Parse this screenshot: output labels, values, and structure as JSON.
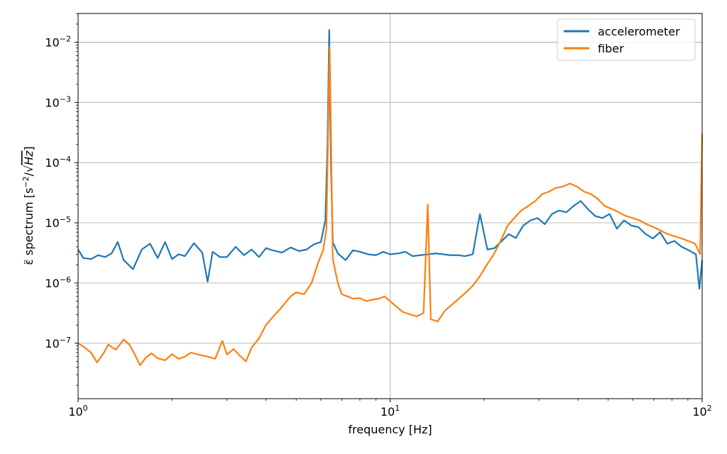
{
  "chart_data": {
    "type": "line",
    "title": "",
    "xlabel": "frequency [Hz]",
    "ylabel_prefix": "ε̈ spectrum [s",
    "ylabel_exp": "−2",
    "ylabel_suffix": "/√",
    "ylabel_unit": "Hz",
    "ylabel_close": "]",
    "x_scale": "log",
    "y_scale": "log",
    "xlim": [
      1,
      100
    ],
    "ylim": [
      1.2e-08,
      0.03
    ],
    "grid": true,
    "legend_position": "top-right",
    "x_ticks": [
      {
        "value": 1,
        "base": "10",
        "exp": "0"
      },
      {
        "value": 10,
        "base": "10",
        "exp": "1"
      },
      {
        "value": 100,
        "base": "10",
        "exp": "2"
      }
    ],
    "y_ticks": [
      {
        "value": 1e-07,
        "base": "10",
        "exp": "−7"
      },
      {
        "value": 1e-06,
        "base": "10",
        "exp": "−6"
      },
      {
        "value": 1e-05,
        "base": "10",
        "exp": "−5"
      },
      {
        "value": 0.0001,
        "base": "10",
        "exp": "−4"
      },
      {
        "value": 0.001,
        "base": "10",
        "exp": "−3"
      },
      {
        "value": 0.01,
        "base": "10",
        "exp": "−2"
      }
    ],
    "series": [
      {
        "name": "accelerometer",
        "color": "#1f77b4",
        "points": [
          [
            1.0,
            3.6e-06
          ],
          [
            1.04,
            2.6e-06
          ],
          [
            1.1,
            2.5e-06
          ],
          [
            1.16,
            2.9e-06
          ],
          [
            1.22,
            2.7e-06
          ],
          [
            1.28,
            3.1e-06
          ],
          [
            1.34,
            4.8e-06
          ],
          [
            1.4,
            2.4e-06
          ],
          [
            1.5,
            1.7e-06
          ],
          [
            1.6,
            3.6e-06
          ],
          [
            1.7,
            4.5e-06
          ],
          [
            1.8,
            2.6e-06
          ],
          [
            1.9,
            4.8e-06
          ],
          [
            2.0,
            2.5e-06
          ],
          [
            2.1,
            3e-06
          ],
          [
            2.2,
            2.8e-06
          ],
          [
            2.35,
            4.6e-06
          ],
          [
            2.5,
            3.2e-06
          ],
          [
            2.6,
            1.05e-06
          ],
          [
            2.7,
            3.3e-06
          ],
          [
            2.85,
            2.7e-06
          ],
          [
            3.0,
            2.7e-06
          ],
          [
            3.2,
            4e-06
          ],
          [
            3.4,
            2.9e-06
          ],
          [
            3.6,
            3.6e-06
          ],
          [
            3.8,
            2.7e-06
          ],
          [
            4.0,
            3.8e-06
          ],
          [
            4.2,
            3.5e-06
          ],
          [
            4.5,
            3.2e-06
          ],
          [
            4.8,
            3.9e-06
          ],
          [
            5.1,
            3.4e-06
          ],
          [
            5.4,
            3.6e-06
          ],
          [
            5.7,
            4.4e-06
          ],
          [
            6.0,
            4.8e-06
          ],
          [
            6.2,
            1.1e-05
          ],
          [
            6.3,
            0.0002
          ],
          [
            6.38,
            0.016
          ],
          [
            6.45,
            0.00015
          ],
          [
            6.55,
            4.8e-06
          ],
          [
            6.8,
            3.1e-06
          ],
          [
            7.2,
            2.4e-06
          ],
          [
            7.6,
            3.5e-06
          ],
          [
            8.0,
            3.3e-06
          ],
          [
            8.5,
            3e-06
          ],
          [
            9.0,
            2.9e-06
          ],
          [
            9.5,
            3.3e-06
          ],
          [
            10.0,
            3e-06
          ],
          [
            10.6,
            3.1e-06
          ],
          [
            11.2,
            3.3e-06
          ],
          [
            11.8,
            2.8e-06
          ],
          [
            12.5,
            2.9e-06
          ],
          [
            13.2,
            3e-06
          ],
          [
            14.0,
            3.1e-06
          ],
          [
            14.8,
            3e-06
          ],
          [
            15.6,
            2.9e-06
          ],
          [
            16.5,
            2.9e-06
          ],
          [
            17.4,
            2.8e-06
          ],
          [
            18.4,
            3e-06
          ],
          [
            19.4,
            1.4e-05
          ],
          [
            20.5,
            3.6e-06
          ],
          [
            21.6,
            3.8e-06
          ],
          [
            22.8,
            5e-06
          ],
          [
            24.0,
            6.5e-06
          ],
          [
            25.3,
            5.6e-06
          ],
          [
            26.7,
            9e-06
          ],
          [
            28.2,
            1.1e-05
          ],
          [
            29.7,
            1.2e-05
          ],
          [
            31.3,
            9.5e-06
          ],
          [
            33.0,
            1.4e-05
          ],
          [
            34.8,
            1.6e-05
          ],
          [
            36.7,
            1.5e-05
          ],
          [
            38.7,
            1.9e-05
          ],
          [
            40.8,
            2.3e-05
          ],
          [
            43.0,
            1.7e-05
          ],
          [
            45.4,
            1.3e-05
          ],
          [
            47.9,
            1.2e-05
          ],
          [
            50.5,
            1.4e-05
          ],
          [
            53.3,
            8e-06
          ],
          [
            56.2,
            1.1e-05
          ],
          [
            59.3,
            9e-06
          ],
          [
            62.5,
            8.5e-06
          ],
          [
            65.9,
            6.5e-06
          ],
          [
            69.5,
            5.5e-06
          ],
          [
            73.3,
            7e-06
          ],
          [
            77.3,
            4.5e-06
          ],
          [
            81.5,
            5e-06
          ],
          [
            85.9,
            4e-06
          ],
          [
            90.6,
            3.5e-06
          ],
          [
            95.5,
            3e-06
          ],
          [
            98.0,
            8e-07
          ],
          [
            100.0,
            2.4e-06
          ]
        ]
      },
      {
        "name": "fiber",
        "color": "#ff7f0e",
        "points": [
          [
            1.0,
            1e-07
          ],
          [
            1.05,
            8.5e-08
          ],
          [
            1.1,
            7e-08
          ],
          [
            1.15,
            4.8e-08
          ],
          [
            1.2,
            6.5e-08
          ],
          [
            1.25,
            9.5e-08
          ],
          [
            1.32,
            7.8e-08
          ],
          [
            1.4,
            1.15e-07
          ],
          [
            1.46,
            9.5e-08
          ],
          [
            1.52,
            6.5e-08
          ],
          [
            1.58,
            4.3e-08
          ],
          [
            1.65,
            5.8e-08
          ],
          [
            1.72,
            6.8e-08
          ],
          [
            1.8,
            5.6e-08
          ],
          [
            1.9,
            5.2e-08
          ],
          [
            2.0,
            6.6e-08
          ],
          [
            2.1,
            5.5e-08
          ],
          [
            2.2,
            6e-08
          ],
          [
            2.3,
            7e-08
          ],
          [
            2.45,
            6.4e-08
          ],
          [
            2.6,
            6e-08
          ],
          [
            2.75,
            5.5e-08
          ],
          [
            2.9,
            1.1e-07
          ],
          [
            3.0,
            6.5e-08
          ],
          [
            3.15,
            8e-08
          ],
          [
            3.3,
            6.2e-08
          ],
          [
            3.45,
            5e-08
          ],
          [
            3.6,
            8.5e-08
          ],
          [
            3.8,
            1.2e-07
          ],
          [
            4.0,
            2e-07
          ],
          [
            4.2,
            2.7e-07
          ],
          [
            4.4,
            3.5e-07
          ],
          [
            4.6,
            4.6e-07
          ],
          [
            4.8,
            6e-07
          ],
          [
            5.0,
            7e-07
          ],
          [
            5.3,
            6.5e-07
          ],
          [
            5.6,
            1e-06
          ],
          [
            5.9,
            2.3e-06
          ],
          [
            6.1,
            3.5e-06
          ],
          [
            6.25,
            8e-06
          ],
          [
            6.35,
            0.0009
          ],
          [
            6.4,
            0.0085
          ],
          [
            6.47,
            0.0002
          ],
          [
            6.55,
            2.5e-06
          ],
          [
            6.8,
            1e-06
          ],
          [
            7.0,
            6.5e-07
          ],
          [
            7.3,
            6e-07
          ],
          [
            7.6,
            5.5e-07
          ],
          [
            8.0,
            5.6e-07
          ],
          [
            8.4,
            5e-07
          ],
          [
            8.8,
            5.3e-07
          ],
          [
            9.2,
            5.5e-07
          ],
          [
            9.6,
            6e-07
          ],
          [
            10.0,
            5e-07
          ],
          [
            10.5,
            4e-07
          ],
          [
            11.0,
            3.3e-07
          ],
          [
            11.6,
            3e-07
          ],
          [
            12.2,
            2.8e-07
          ],
          [
            12.8,
            3.2e-07
          ],
          [
            13.2,
            2e-05
          ],
          [
            13.5,
            2.5e-07
          ],
          [
            14.2,
            2.3e-07
          ],
          [
            15.0,
            3.5e-07
          ],
          [
            15.8,
            4.4e-07
          ],
          [
            16.6,
            5.5e-07
          ],
          [
            17.5,
            7e-07
          ],
          [
            18.4,
            9e-07
          ],
          [
            19.4,
            1.3e-06
          ],
          [
            20.4,
            2e-06
          ],
          [
            21.5,
            3e-06
          ],
          [
            22.6,
            5e-06
          ],
          [
            23.8,
            9e-06
          ],
          [
            25.0,
            1.2e-05
          ],
          [
            26.3,
            1.6e-05
          ],
          [
            27.7,
            1.9e-05
          ],
          [
            29.2,
            2.3e-05
          ],
          [
            30.7,
            3e-05
          ],
          [
            32.3,
            3.3e-05
          ],
          [
            34.0,
            3.8e-05
          ],
          [
            35.8,
            4e-05
          ],
          [
            37.7,
            4.5e-05
          ],
          [
            39.7,
            4e-05
          ],
          [
            41.8,
            3.3e-05
          ],
          [
            44.0,
            3e-05
          ],
          [
            46.3,
            2.5e-05
          ],
          [
            48.7,
            1.9e-05
          ],
          [
            51.3,
            1.7e-05
          ],
          [
            54.0,
            1.5e-05
          ],
          [
            56.9,
            1.3e-05
          ],
          [
            59.9,
            1.2e-05
          ],
          [
            63.0,
            1.1e-05
          ],
          [
            66.3,
            9.5e-06
          ],
          [
            69.8,
            8.5e-06
          ],
          [
            73.5,
            7.5e-06
          ],
          [
            77.4,
            6.5e-06
          ],
          [
            81.5,
            6e-06
          ],
          [
            85.8,
            5.5e-06
          ],
          [
            90.3,
            5e-06
          ],
          [
            95.0,
            4.5e-06
          ],
          [
            98.5,
            3e-06
          ],
          [
            100.0,
            0.0003
          ]
        ]
      }
    ]
  }
}
